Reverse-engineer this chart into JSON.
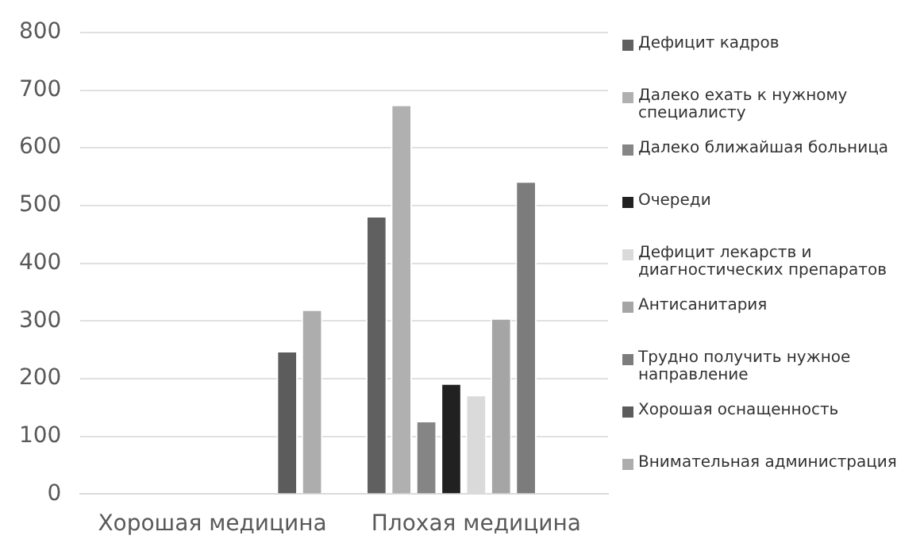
{
  "chart_data": {
    "type": "bar",
    "categories": [
      "Хорошая медицина",
      "Плохая медицина"
    ],
    "series": [
      {
        "name": "Дефицит кадров",
        "color": "#5f605f",
        "values": [
          null,
          482
        ]
      },
      {
        "name": "Далеко ехать к нужному специалисту",
        "color": "#b0b0b0",
        "values": [
          null,
          675
        ]
      },
      {
        "name": "Далеко ближайшая больница",
        "color": "#858585",
        "values": [
          null,
          127
        ]
      },
      {
        "name": "Очереди",
        "color": "#212121",
        "values": [
          null,
          192
        ]
      },
      {
        "name": "Дефицит лекарств и диагностических препаратов",
        "color": "#dadada",
        "values": [
          null,
          172
        ]
      },
      {
        "name": "Антисанитария",
        "color": "#a5a5a5",
        "values": [
          null,
          305
        ]
      },
      {
        "name": "Трудно получить нужное направление",
        "color": "#7c7c7c",
        "values": [
          null,
          542
        ]
      },
      {
        "name": "Хорошая оснащенность",
        "color": "#5c5c5c",
        "values": [
          248,
          null
        ]
      },
      {
        "name": "Вниматeльная администрация",
        "color": "#adadad",
        "values": [
          320,
          null
        ]
      }
    ],
    "ylim": [
      0,
      800
    ],
    "yticks": [
      0,
      100,
      200,
      300,
      400,
      500,
      600,
      700,
      800
    ],
    "grid": "y",
    "legend": "right"
  }
}
